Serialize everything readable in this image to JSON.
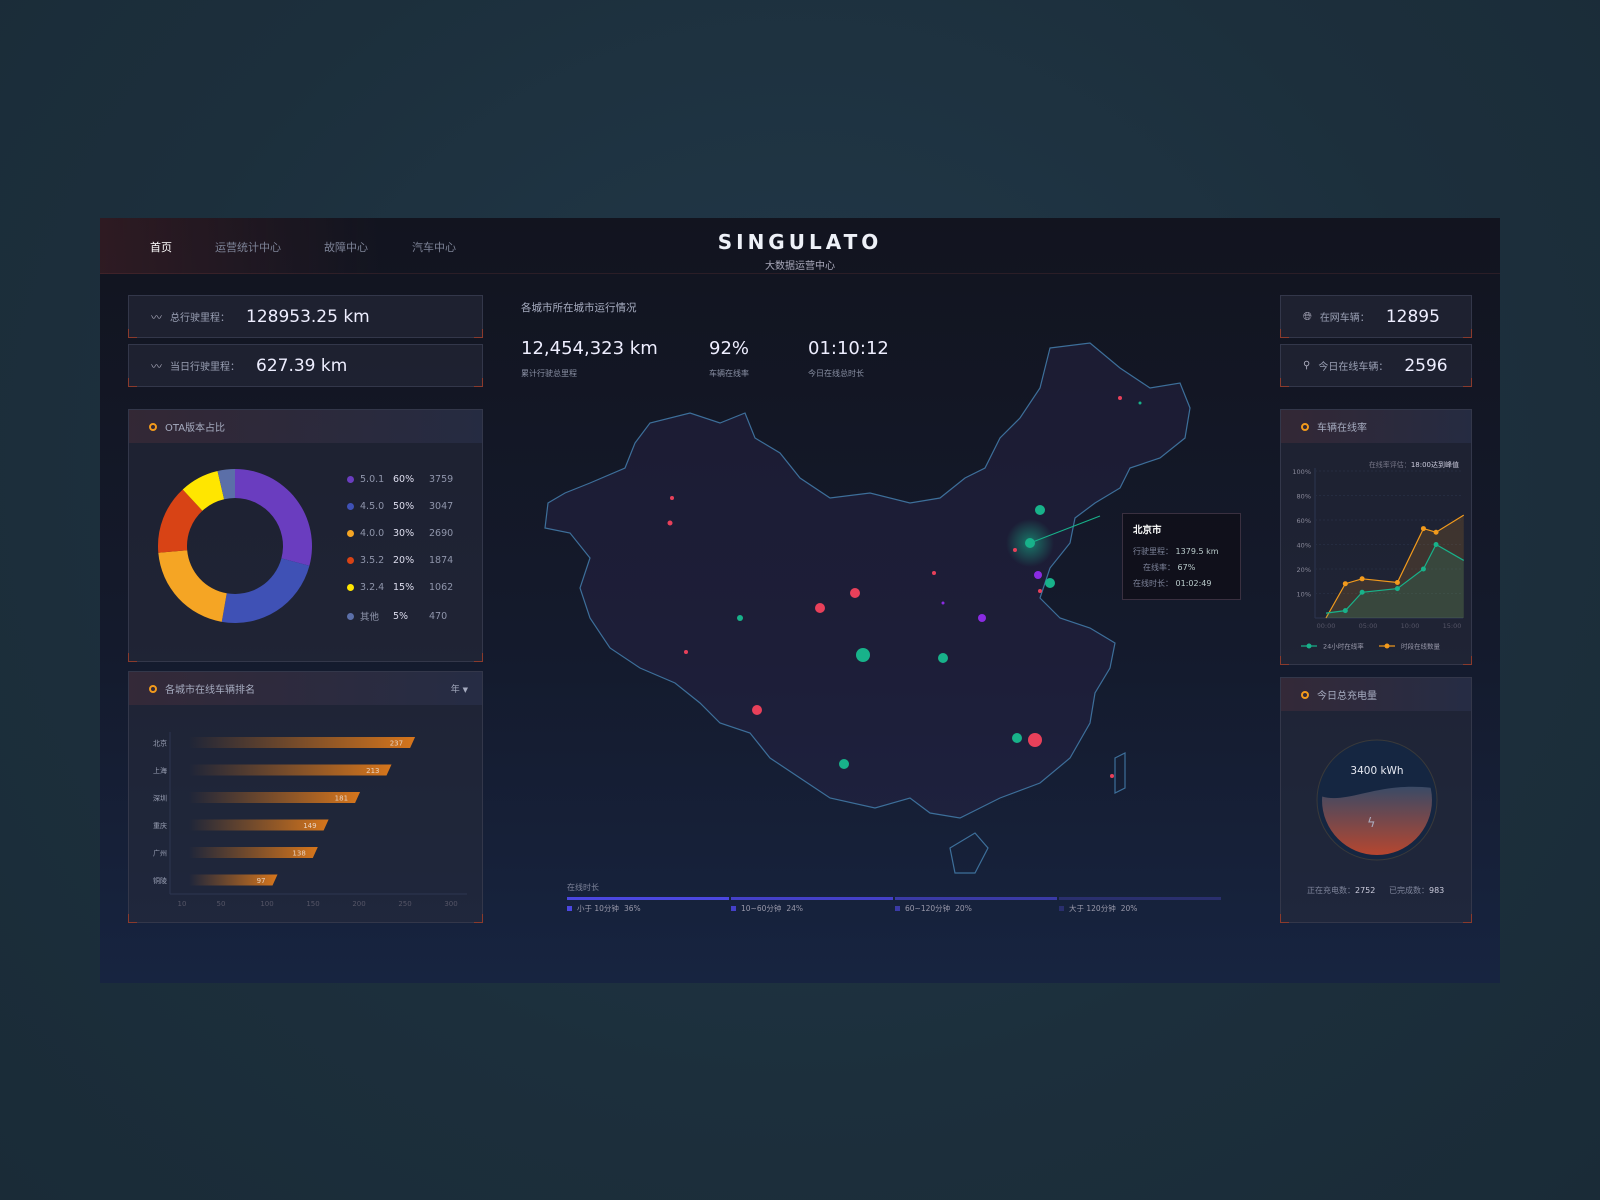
{
  "nav": {
    "items": [
      {
        "label": "首页",
        "active": true
      },
      {
        "label": "运营统计中心"
      },
      {
        "label": "故障中心"
      },
      {
        "label": "汽车中心"
      }
    ]
  },
  "brand": {
    "logo": "SINGULATO",
    "subtitle": "大数据运营中心"
  },
  "left_stats": [
    {
      "icon": "trend-icon",
      "label": "总行驶里程：",
      "value": "128953.25 km"
    },
    {
      "icon": "trend-icon",
      "label": "当日行驶里程：",
      "value": "627.39 km"
    }
  ],
  "right_stats": [
    {
      "icon": "globe-icon",
      "label": "在网车辆：",
      "value": "12895"
    },
    {
      "icon": "location-pin-icon",
      "label": "今日在线车辆：",
      "value": "2596"
    }
  ],
  "center": {
    "title": "各城市所在城市运行情况",
    "metrics": [
      {
        "value": "12,454,323 km",
        "label": "累计行驶总里程"
      },
      {
        "value": "92%",
        "label": "车辆在线率"
      },
      {
        "value": "01:10:12",
        "label": "今日在线总时长"
      }
    ],
    "tooltip": {
      "city": "北京市",
      "rows": [
        {
          "label": "行驶里程：",
          "value": "1379.5 km"
        },
        {
          "label": "在线率：",
          "value": "67%"
        },
        {
          "label": "在线时长：",
          "value": "01:02:49"
        }
      ]
    },
    "duration": {
      "title": "在线时长",
      "segments": [
        {
          "label": "小于 10分钟",
          "pct": "36%",
          "color": "#4b47e0"
        },
        {
          "label": "10~60分钟",
          "pct": "24%",
          "color": "#4440c8"
        },
        {
          "label": "60~120分钟",
          "pct": "20%",
          "color": "#3a3aa6"
        },
        {
          "label": "大于 120分钟",
          "pct": "20%",
          "color": "#2a2f6e"
        }
      ]
    }
  },
  "ota": {
    "title": "OTA版本占比"
  },
  "ranking": {
    "title": "各城市在线车辆排名",
    "filter": "年"
  },
  "online_rate": {
    "title": "车辆在线率",
    "note_label": "在线率评估：",
    "note_value": "18:00达到峰值"
  },
  "charge": {
    "title": "今日总充电量",
    "value": "3400 kWh",
    "fill": 0.55,
    "charging_label": "正在充电数：",
    "charging_value": "2752",
    "done_label": "已完成数：",
    "done_value": "983"
  },
  "chart_data": [
    {
      "type": "pie",
      "title": "OTA版本占比",
      "categories": [
        "5.0.1",
        "4.5.0",
        "4.0.0",
        "3.5.2",
        "3.2.4",
        "其他"
      ],
      "percents": [
        "60%",
        "50%",
        "30%",
        "20%",
        "15%",
        "5%"
      ],
      "values": [
        3759,
        3047,
        2690,
        1874,
        1062,
        470
      ],
      "colors": [
        "#6a3dbf",
        "#3f51b5",
        "#f5a524",
        "#d84315",
        "#ffe600",
        "#5b6fa8"
      ],
      "legend": "right"
    },
    {
      "type": "bar",
      "orientation": "horizontal",
      "title": "各城市在线车辆排名",
      "categories": [
        "北京",
        "上海",
        "深圳",
        "重庆",
        "广州",
        "铜陵"
      ],
      "values": [
        237,
        213,
        181,
        149,
        138,
        97
      ],
      "xticks": [
        "10",
        "50",
        "100",
        "150",
        "200",
        "250",
        "300"
      ],
      "xlim": [
        10,
        300
      ],
      "color": "#e07a1a"
    },
    {
      "type": "line",
      "title": "车辆在线率",
      "xticks": [
        "00:00",
        "05:00",
        "10:00",
        "15:00"
      ],
      "yticks": [
        "10%",
        "20%",
        "40%",
        "60%",
        "80%",
        "100%"
      ],
      "xlim": [
        0,
        16.5
      ],
      "series": [
        {
          "name": "24小时在线率",
          "color": "#18b28a",
          "x": [
            0,
            2.3,
            4.3,
            8.5,
            11.6,
            13.1,
            16.4
          ],
          "y": [
            2,
            3,
            10.5,
            12,
            20,
            40,
            27
          ]
        },
        {
          "name": "时段在线数量",
          "color": "#f29a1c",
          "x": [
            0,
            2.3,
            4.3,
            8.5,
            11.6,
            13.1,
            16.4
          ],
          "y": [
            0,
            14,
            16,
            14.5,
            53,
            50,
            64
          ]
        }
      ],
      "legend": "bottom"
    }
  ]
}
